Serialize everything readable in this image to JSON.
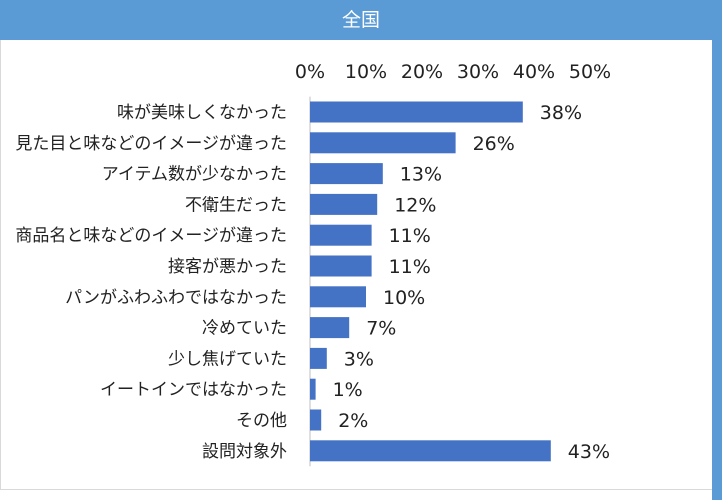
{
  "header": {
    "title": "全国"
  },
  "colors": {
    "header": "#5b9bd5",
    "bar": "#4472c4"
  },
  "chart_data": {
    "type": "bar",
    "orientation": "horizontal",
    "title": "全国",
    "xlim": [
      0,
      50
    ],
    "x_ticks": [
      "0%",
      "10%",
      "20%",
      "30%",
      "40%",
      "50%"
    ],
    "x_axis_position": "top",
    "grid": false,
    "categories": [
      "味が美味しくなかった",
      "見た目と味などのイメージが違った",
      "アイテム数が少なかった",
      "不衛生だった",
      "商品名と味などのイメージが違った",
      "接客が悪かった",
      "パンがふわふわではなかった",
      "冷めていた",
      "少し焦げていた",
      "イートインではなかった",
      "その他",
      "設問対象外"
    ],
    "values": [
      38,
      26,
      13,
      12,
      11,
      11,
      10,
      7,
      3,
      1,
      2,
      43
    ],
    "value_labels": [
      "38%",
      "26%",
      "13%",
      "12%",
      "11%",
      "11%",
      "10%",
      "7%",
      "3%",
      "1%",
      "2%",
      "43%"
    ]
  }
}
